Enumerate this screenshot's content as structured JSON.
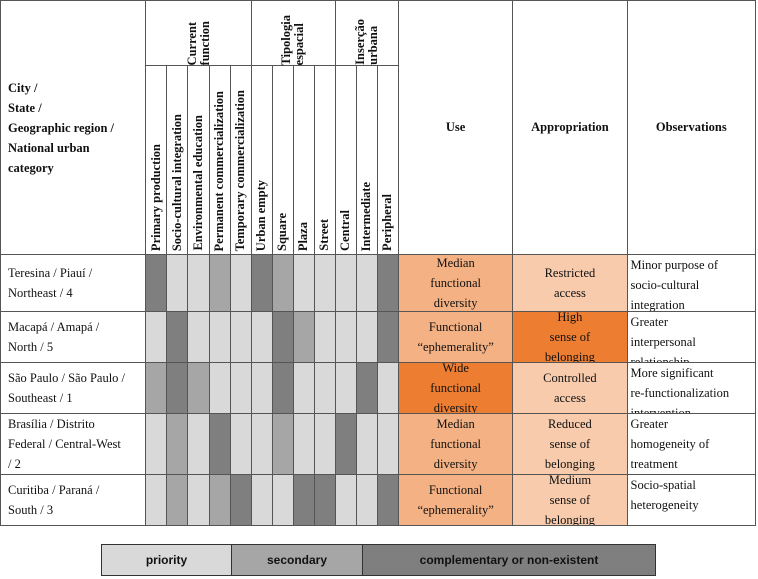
{
  "header": {
    "city_lines": [
      "City /",
      "State /",
      "Geographic region /",
      "National urban",
      "category"
    ],
    "groups": [
      {
        "line1": "Current",
        "line2": "function"
      },
      {
        "line1": "Tipologia",
        "line2": "espacial"
      },
      {
        "line1": "Inserção",
        "line2": "urbana"
      }
    ],
    "columns": [
      "Primary production",
      "Socio-cultural integration",
      "Environmental education",
      "Permanent commercialization",
      "Temporary commercialization",
      "Urban empty",
      "Square",
      "Plaza",
      "Street",
      "Central",
      "Intermediate",
      "Peripheral"
    ],
    "use": "Use",
    "appropriation": "Appropriation",
    "observations": "Observations"
  },
  "rows": [
    {
      "city": [
        "Teresina / Piauí /",
        "Northeast / 4"
      ],
      "marks": [
        "c",
        "p",
        "p",
        "s",
        "p",
        "c",
        "s",
        "p",
        "p",
        "p",
        "p",
        "c"
      ],
      "use": [
        "Median",
        "functional",
        "diversity"
      ],
      "use_tone": "med",
      "appropriation": [
        "Restricted",
        "access"
      ],
      "app_tone": "lo",
      "observations": [
        "Minor purpose of",
        "socio-cultural",
        "integration"
      ]
    },
    {
      "city": [
        "Macapá / Amapá /",
        "North /  5"
      ],
      "marks": [
        "p",
        "c",
        "p",
        "p",
        "p",
        "p",
        "c",
        "s",
        "p",
        "p",
        "p",
        "c"
      ],
      "use": [
        "Functional",
        "“ephemerality”"
      ],
      "use_tone": "med",
      "appropriation": [
        "High",
        "sense of",
        "belonging"
      ],
      "app_tone": "hi",
      "observations": [
        "Greater",
        "interpersonal",
        "relationship"
      ]
    },
    {
      "city": [
        "São Paulo / São Paulo /",
        "Southeast /  1"
      ],
      "marks": [
        "s",
        "c",
        "s",
        "p",
        "p",
        "p",
        "c",
        "p",
        "p",
        "p",
        "c",
        "p"
      ],
      "use": [
        "Wide",
        "functional",
        "diversity"
      ],
      "use_tone": "hi",
      "appropriation": [
        "Controlled",
        "access"
      ],
      "app_tone": "lo",
      "observations": [
        "More significant",
        "re-functionalization",
        "intervention"
      ]
    },
    {
      "city": [
        "Brasília / Distrito",
        "Federal /  Central-West",
        "/  2"
      ],
      "marks": [
        "p",
        "s",
        "p",
        "c",
        "p",
        "p",
        "s",
        "p",
        "p",
        "c",
        "p",
        "p"
      ],
      "use": [
        "Median",
        "functional",
        "diversity"
      ],
      "use_tone": "med",
      "appropriation": [
        "Reduced",
        "sense of",
        "belonging"
      ],
      "app_tone": "lo",
      "observations": [
        "Greater",
        "homogeneity of",
        "treatment"
      ]
    },
    {
      "city": [
        "Curitiba / Paraná /",
        "South /  3"
      ],
      "marks": [
        "p",
        "s",
        "p",
        "s",
        "c",
        "p",
        "p",
        "c",
        "c",
        "p",
        "p",
        "c"
      ],
      "use": [
        "Functional",
        "“ephemerality”"
      ],
      "use_tone": "med",
      "appropriation": [
        "Medium",
        "sense of",
        "belonging"
      ],
      "app_tone": "lo",
      "observations": [
        "Socio-spatial",
        "heterogeneity"
      ]
    }
  ],
  "legend": {
    "priority": "priority",
    "secondary": "secondary",
    "complementary": "complementary or  non-existent"
  },
  "colors": {
    "priority": "#d9d9d9",
    "secondary": "#a6a6a6",
    "complementary": "#7f7f7f",
    "tone_med": "#f4b183",
    "tone_hi": "#ed7d31",
    "tone_lo": "#f8cbad"
  }
}
